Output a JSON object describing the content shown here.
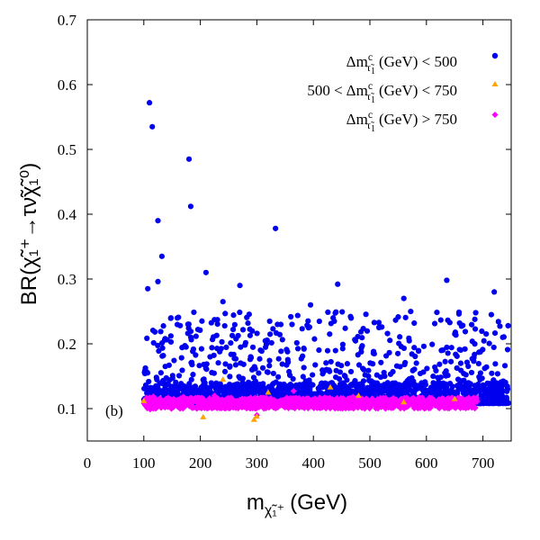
{
  "chart_data": {
    "type": "scatter",
    "panel_label": "(b)",
    "xlabel": {
      "main": "m",
      "sub": "χ̃₁⁺",
      "unit": "(GeV)"
    },
    "ylabel": "BR(χ̃₁⁺→τν̃χ̃₁⁰)",
    "xlim": [
      0,
      750
    ],
    "ylim": [
      0.05,
      0.7
    ],
    "xticks": [
      0,
      100,
      200,
      300,
      400,
      500,
      600,
      700
    ],
    "yticks": [
      0.1,
      0.2,
      0.3,
      0.4,
      0.5,
      0.6,
      0.7
    ],
    "grid": false,
    "legend_position": "top-right",
    "colors": {
      "low": "#0000ee",
      "mid": "#ffa500",
      "high": "#ff00ff"
    },
    "series": [
      {
        "name": "Δm^c_τ̃₁ (GeV) < 500",
        "legend": {
          "delta": "Δm",
          "sup": "c",
          "sub": "τ̃",
          "subsub": "1",
          "tail": "(GeV) < 500"
        },
        "marker": "circle",
        "color_key": "low",
        "outliers": [
          [
            110,
            0.572
          ],
          [
            115,
            0.535
          ],
          [
            180,
            0.485
          ],
          [
            183,
            0.412
          ],
          [
            125,
            0.39
          ],
          [
            333,
            0.378
          ],
          [
            132,
            0.335
          ],
          [
            210,
            0.31
          ],
          [
            107,
            0.285
          ],
          [
            125,
            0.296
          ],
          [
            270,
            0.29
          ],
          [
            443,
            0.292
          ],
          [
            636,
            0.298
          ],
          [
            720,
            0.28
          ],
          [
            735,
            0.21
          ],
          [
            560,
            0.27
          ],
          [
            395,
            0.26
          ],
          [
            240,
            0.265
          ]
        ],
        "band": {
          "x_range": [
            100,
            745
          ],
          "y_floor": 0.108,
          "y_cloud_top": 0.25,
          "y_dense_top": 0.14
        }
      },
      {
        "name": "500 < Δm^c_τ̃₁ (GeV) < 750",
        "legend": {
          "prefix": "500 <",
          "delta": "Δm",
          "sup": "c",
          "sub": "τ̃",
          "subsub": "1",
          "tail": "(GeV) < 750"
        },
        "marker": "triangle",
        "color_key": "mid",
        "points": [
          [
            205,
            0.087
          ],
          [
            295,
            0.083
          ],
          [
            240,
            0.145
          ],
          [
            430,
            0.133
          ],
          [
            480,
            0.12
          ],
          [
            320,
            0.125
          ],
          [
            560,
            0.11
          ],
          [
            100,
            0.112
          ],
          [
            300,
            0.088
          ],
          [
            650,
            0.115
          ]
        ]
      },
      {
        "name": "Δm^c_τ̃₁ (GeV) > 750",
        "legend": {
          "delta": "Δm",
          "sup": "c",
          "sub": "τ̃",
          "subsub": "1",
          "tail": "(GeV) > 750"
        },
        "marker": "diamond",
        "color_key": "high",
        "points": [
          [
            365,
            0.127
          ],
          [
            300,
            0.09
          ],
          [
            170,
            0.118
          ],
          [
            225,
            0.12
          ],
          [
            470,
            0.118
          ]
        ],
        "band": {
          "x_range": [
            100,
            690
          ],
          "y_low": 0.1,
          "y_high": 0.117
        }
      }
    ]
  }
}
